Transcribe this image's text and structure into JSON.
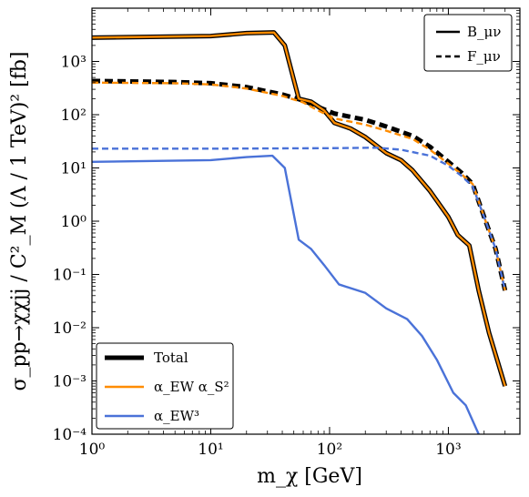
{
  "chart_data": {
    "type": "line",
    "xlabel": "m_χ [GeV]",
    "ylabel": "σ_pp→χχjj / C²_M (Λ / 1 TeV)² [fb]",
    "xscale": "log",
    "yscale": "log",
    "xlim": [
      1,
      4000
    ],
    "ylim": [
      0.0001,
      10000
    ],
    "x_ticks": [
      {
        "value": 1,
        "label": "10⁰"
      },
      {
        "value": 10,
        "label": "10¹"
      },
      {
        "value": 100,
        "label": "10²"
      },
      {
        "value": 1000,
        "label": "10³"
      }
    ],
    "y_ticks": [
      {
        "value": 0.0001,
        "label": "10⁻⁴"
      },
      {
        "value": 0.001,
        "label": "10⁻³"
      },
      {
        "value": 0.01,
        "label": "10⁻²"
      },
      {
        "value": 0.1,
        "label": "10⁻¹"
      },
      {
        "value": 1,
        "label": "10⁰"
      },
      {
        "value": 10,
        "label": "10¹"
      },
      {
        "value": 100,
        "label": "10²"
      },
      {
        "value": 1000,
        "label": "10³"
      }
    ],
    "grid": false,
    "colors": {
      "total": "#000000",
      "ew_s2": "#ff8c00",
      "ew3": "#4a72d8"
    },
    "legends": [
      {
        "placement": "top-right",
        "entries": [
          {
            "label": "B_μν",
            "style": "solid"
          },
          {
            "label": "F_μν",
            "style": "dashed"
          }
        ]
      },
      {
        "placement": "bottom-left",
        "entries": [
          {
            "label": "Total",
            "color": "#000000"
          },
          {
            "label": "α_EW α_S²",
            "color": "#ff8c00"
          },
          {
            "label": "α_EW³",
            "color": "#4a72d8"
          }
        ]
      }
    ],
    "series": [
      {
        "component": "total",
        "operator": "B",
        "points": [
          [
            1,
            2800
          ],
          [
            10,
            3000
          ],
          [
            20,
            3400
          ],
          [
            34,
            3500
          ],
          [
            42,
            2000
          ],
          [
            55,
            200
          ],
          [
            70,
            175
          ],
          [
            90,
            120
          ],
          [
            110,
            70
          ],
          [
            150,
            55
          ],
          [
            200,
            38
          ],
          [
            300,
            19
          ],
          [
            400,
            14
          ],
          [
            500,
            9
          ],
          [
            700,
            3.7
          ],
          [
            1000,
            1.2
          ],
          [
            1200,
            0.55
          ],
          [
            1500,
            0.35
          ],
          [
            1800,
            0.05
          ],
          [
            2200,
            0.008
          ],
          [
            3000,
            0.0008
          ]
        ]
      },
      {
        "component": "ew_s2",
        "operator": "B",
        "points": [
          [
            1,
            2800
          ],
          [
            10,
            3000
          ],
          [
            20,
            3400
          ],
          [
            34,
            3500
          ],
          [
            42,
            2000
          ],
          [
            55,
            200
          ],
          [
            70,
            175
          ],
          [
            90,
            120
          ],
          [
            110,
            70
          ],
          [
            150,
            55
          ],
          [
            200,
            38
          ],
          [
            300,
            19
          ],
          [
            400,
            14
          ],
          [
            500,
            9
          ],
          [
            700,
            3.7
          ],
          [
            1000,
            1.2
          ],
          [
            1200,
            0.55
          ],
          [
            1500,
            0.35
          ],
          [
            1800,
            0.05
          ],
          [
            2200,
            0.008
          ],
          [
            3000,
            0.0008
          ]
        ]
      },
      {
        "component": "ew3",
        "operator": "B",
        "points": [
          [
            1,
            13
          ],
          [
            10,
            14
          ],
          [
            20,
            16
          ],
          [
            33,
            17
          ],
          [
            42,
            10
          ],
          [
            55,
            0.45
          ],
          [
            70,
            0.3
          ],
          [
            90,
            0.15
          ],
          [
            120,
            0.065
          ],
          [
            200,
            0.045
          ],
          [
            300,
            0.023
          ],
          [
            450,
            0.0145
          ],
          [
            600,
            0.007
          ],
          [
            800,
            0.0025
          ],
          [
            1100,
            0.0006
          ],
          [
            1400,
            0.00035
          ],
          [
            1800,
            0.0001
          ]
        ]
      },
      {
        "component": "total",
        "operator": "F",
        "points": [
          [
            1,
            430
          ],
          [
            5,
            410
          ],
          [
            10,
            390
          ],
          [
            20,
            330
          ],
          [
            40,
            240
          ],
          [
            60,
            185
          ],
          [
            80,
            140
          ],
          [
            110,
            105
          ],
          [
            200,
            80
          ],
          [
            300,
            60
          ],
          [
            500,
            40
          ],
          [
            700,
            25
          ],
          [
            1000,
            13
          ],
          [
            1300,
            8
          ],
          [
            1600,
            5
          ],
          [
            2000,
            1.2
          ],
          [
            2500,
            0.3
          ],
          [
            3000,
            0.05
          ]
        ]
      },
      {
        "component": "ew_s2",
        "operator": "F",
        "points": [
          [
            1,
            400
          ],
          [
            5,
            390
          ],
          [
            10,
            370
          ],
          [
            20,
            310
          ],
          [
            40,
            225
          ],
          [
            60,
            170
          ],
          [
            80,
            120
          ],
          [
            110,
            85
          ],
          [
            200,
            65
          ],
          [
            300,
            50
          ],
          [
            500,
            35
          ],
          [
            700,
            22
          ],
          [
            1000,
            12
          ],
          [
            1300,
            7.5
          ],
          [
            1600,
            5
          ],
          [
            2000,
            1.2
          ],
          [
            2500,
            0.3
          ],
          [
            3000,
            0.05
          ]
        ]
      },
      {
        "component": "ew3",
        "operator": "F",
        "points": [
          [
            1,
            23
          ],
          [
            10,
            23
          ],
          [
            100,
            23.5
          ],
          [
            250,
            24
          ],
          [
            400,
            22
          ],
          [
            700,
            17
          ],
          [
            1000,
            11
          ],
          [
            1300,
            7
          ],
          [
            1600,
            4.5
          ],
          [
            2000,
            1.2
          ],
          [
            2500,
            0.3
          ],
          [
            3000,
            0.05
          ]
        ]
      }
    ]
  }
}
